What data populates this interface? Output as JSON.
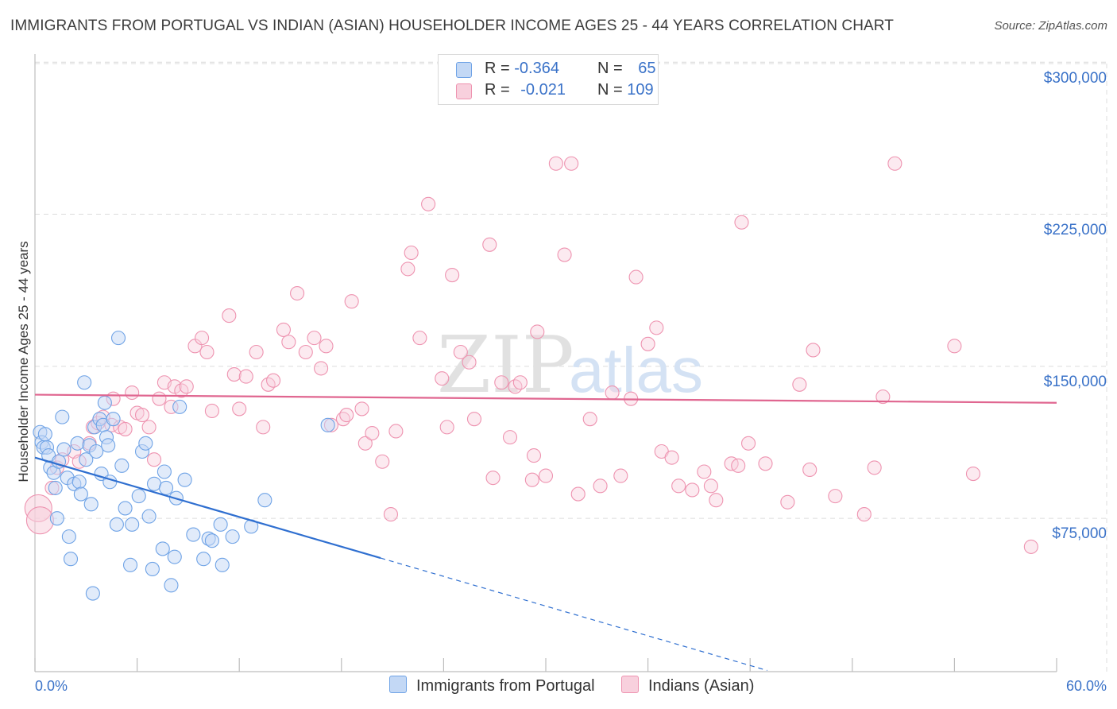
{
  "header": {
    "title": "IMMIGRANTS FROM PORTUGAL VS INDIAN (ASIAN) HOUSEHOLDER INCOME AGES 25 - 44 YEARS CORRELATION CHART",
    "source": "Source: ZipAtlas.com"
  },
  "legend": {
    "series1": {
      "r_label": "R = ",
      "r_value": "-0.364",
      "n_label": "N = ",
      "n_value": "65"
    },
    "series2": {
      "r_label": "R = ",
      "r_value": "-0.021",
      "n_label": "N = ",
      "n_value": "109"
    }
  },
  "watermark": {
    "zip": "ZIP",
    "atlas": "atlas"
  },
  "colors": {
    "blue": "#6fa3e6",
    "blue_fill": "#c3d8f5",
    "blue_line": "#2f6fd0",
    "pink": "#ee93b0",
    "pink_fill": "#f8d0dd",
    "pink_line": "#e06690",
    "axis_label": "#3a72c8"
  },
  "chart_data": {
    "type": "scatter",
    "title": "IMMIGRANTS FROM PORTUGAL VS INDIAN (ASIAN) HOUSEHOLDER INCOME AGES 25 - 44 YEARS CORRELATION CHART",
    "xlabel": "",
    "ylabel": "Householder Income Ages 25 - 44 years",
    "xlim": [
      0,
      60
    ],
    "ylim": [
      0,
      315000
    ],
    "x_tick_labels": [
      "0.0%",
      "60.0%"
    ],
    "y_ticks": [
      75000,
      150000,
      225000,
      300000
    ],
    "y_tick_labels": [
      "$75,000",
      "$150,000",
      "$225,000",
      "$300,000"
    ],
    "legend_position": "bottom-center",
    "series": [
      {
        "name": "Immigrants from Portugal",
        "color": "#6fa3e6",
        "trend": {
          "x_start": 0,
          "y_start": 105000,
          "x_solid_end": 20.3,
          "x_end": 43.0,
          "y_end": 0
        },
        "points": [
          [
            0.3,
            117500
          ],
          [
            0.4,
            112500
          ],
          [
            0.5,
            110000
          ],
          [
            0.6,
            116500
          ],
          [
            0.7,
            110000
          ],
          [
            0.8,
            106000
          ],
          [
            0.9,
            100000
          ],
          [
            1.1,
            97500
          ],
          [
            1.2,
            90000
          ],
          [
            1.3,
            75000
          ],
          [
            1.4,
            103000
          ],
          [
            1.6,
            125000
          ],
          [
            1.7,
            109000
          ],
          [
            1.9,
            95000
          ],
          [
            2.0,
            66000
          ],
          [
            2.1,
            55000
          ],
          [
            2.3,
            92000
          ],
          [
            2.5,
            112000
          ],
          [
            2.6,
            93000
          ],
          [
            2.7,
            87000
          ],
          [
            2.9,
            142000
          ],
          [
            3.0,
            104000
          ],
          [
            3.2,
            111000
          ],
          [
            3.3,
            82000
          ],
          [
            3.4,
            38000
          ],
          [
            3.5,
            120000
          ],
          [
            3.6,
            108000
          ],
          [
            3.8,
            124000
          ],
          [
            3.9,
            97000
          ],
          [
            4.0,
            121000
          ],
          [
            4.1,
            132000
          ],
          [
            4.2,
            115000
          ],
          [
            4.3,
            111000
          ],
          [
            4.4,
            93000
          ],
          [
            4.6,
            124000
          ],
          [
            4.8,
            72000
          ],
          [
            4.9,
            164000
          ],
          [
            5.1,
            101000
          ],
          [
            5.3,
            80000
          ],
          [
            5.6,
            52000
          ],
          [
            5.7,
            72000
          ],
          [
            6.1,
            86000
          ],
          [
            6.3,
            108000
          ],
          [
            6.5,
            112000
          ],
          [
            6.7,
            76000
          ],
          [
            6.9,
            50000
          ],
          [
            7.0,
            92000
          ],
          [
            7.5,
            60000
          ],
          [
            7.6,
            98000
          ],
          [
            7.7,
            90000
          ],
          [
            8.0,
            42000
          ],
          [
            8.2,
            56000
          ],
          [
            8.3,
            85000
          ],
          [
            8.5,
            130000
          ],
          [
            8.8,
            94000
          ],
          [
            9.3,
            67000
          ],
          [
            9.9,
            55000
          ],
          [
            10.2,
            65000
          ],
          [
            10.4,
            64000
          ],
          [
            11.0,
            52000
          ],
          [
            10.9,
            72000
          ],
          [
            11.6,
            66000
          ],
          [
            12.7,
            71000
          ],
          [
            13.5,
            84000
          ],
          [
            17.2,
            121000
          ]
        ]
      },
      {
        "name": "Indians (Asian)",
        "color": "#ee93b0",
        "trend": {
          "x_start": 0,
          "y_start": 136000,
          "x_end": 60,
          "y_end": 132000
        },
        "points": [
          [
            0.2,
            80000
          ],
          [
            0.3,
            74000
          ],
          [
            1.0,
            90000
          ],
          [
            1.3,
            100000
          ],
          [
            1.6,
            104000
          ],
          [
            2.3,
            108000
          ],
          [
            2.6,
            103000
          ],
          [
            3.2,
            112000
          ],
          [
            3.4,
            120000
          ],
          [
            3.7,
            122000
          ],
          [
            4.0,
            125000
          ],
          [
            4.5,
            121000
          ],
          [
            4.6,
            134000
          ],
          [
            5.0,
            120000
          ],
          [
            5.3,
            119000
          ],
          [
            5.7,
            137000
          ],
          [
            6.0,
            127000
          ],
          [
            6.3,
            126000
          ],
          [
            6.7,
            120000
          ],
          [
            7.0,
            104000
          ],
          [
            7.3,
            134000
          ],
          [
            7.6,
            142000
          ],
          [
            8.0,
            130000
          ],
          [
            8.2,
            140000
          ],
          [
            8.6,
            138000
          ],
          [
            8.9,
            140000
          ],
          [
            9.4,
            160000
          ],
          [
            9.8,
            164000
          ],
          [
            10.1,
            157000
          ],
          [
            10.4,
            128000
          ],
          [
            11.4,
            175000
          ],
          [
            11.7,
            146000
          ],
          [
            12.0,
            129000
          ],
          [
            12.4,
            145000
          ],
          [
            13.0,
            157000
          ],
          [
            13.4,
            120000
          ],
          [
            13.7,
            141000
          ],
          [
            14.0,
            143000
          ],
          [
            14.6,
            168000
          ],
          [
            14.9,
            162000
          ],
          [
            15.4,
            186000
          ],
          [
            15.9,
            157000
          ],
          [
            16.4,
            164000
          ],
          [
            16.8,
            149000
          ],
          [
            17.1,
            160000
          ],
          [
            17.4,
            121000
          ],
          [
            18.1,
            124000
          ],
          [
            18.3,
            126000
          ],
          [
            18.6,
            182000
          ],
          [
            19.2,
            129000
          ],
          [
            19.4,
            112000
          ],
          [
            19.8,
            117000
          ],
          [
            20.4,
            103000
          ],
          [
            20.9,
            77000
          ],
          [
            21.2,
            118000
          ],
          [
            21.9,
            198000
          ],
          [
            22.1,
            206000
          ],
          [
            22.6,
            164000
          ],
          [
            23.1,
            230000
          ],
          [
            23.9,
            144000
          ],
          [
            24.2,
            120000
          ],
          [
            24.5,
            195000
          ],
          [
            25.0,
            157000
          ],
          [
            25.5,
            152000
          ],
          [
            25.8,
            124000
          ],
          [
            26.7,
            210000
          ],
          [
            26.9,
            95000
          ],
          [
            27.4,
            142000
          ],
          [
            27.9,
            115000
          ],
          [
            28.2,
            140000
          ],
          [
            28.5,
            142000
          ],
          [
            29.2,
            94000
          ],
          [
            29.3,
            106000
          ],
          [
            29.5,
            167000
          ],
          [
            30.0,
            96000
          ],
          [
            30.6,
            250000
          ],
          [
            31.1,
            205000
          ],
          [
            31.5,
            250000
          ],
          [
            31.9,
            87000
          ],
          [
            32.6,
            124000
          ],
          [
            33.2,
            91000
          ],
          [
            33.9,
            137000
          ],
          [
            34.4,
            96000
          ],
          [
            35.0,
            134000
          ],
          [
            35.3,
            194000
          ],
          [
            36.0,
            161000
          ],
          [
            36.5,
            169000
          ],
          [
            36.8,
            108000
          ],
          [
            37.4,
            105000
          ],
          [
            37.8,
            91000
          ],
          [
            38.6,
            89000
          ],
          [
            39.3,
            98000
          ],
          [
            39.7,
            91000
          ],
          [
            40.0,
            84000
          ],
          [
            40.9,
            102000
          ],
          [
            41.5,
            221000
          ],
          [
            41.9,
            112000
          ],
          [
            41.3,
            101000
          ],
          [
            42.9,
            102000
          ],
          [
            44.2,
            83000
          ],
          [
            44.9,
            141000
          ],
          [
            45.5,
            99000
          ],
          [
            45.7,
            158000
          ],
          [
            47.0,
            86000
          ],
          [
            48.7,
            77000
          ],
          [
            49.3,
            100000
          ],
          [
            49.8,
            135000
          ],
          [
            50.5,
            250000
          ],
          [
            54.0,
            160000
          ],
          [
            55.1,
            97000
          ],
          [
            58.5,
            61000
          ]
        ]
      }
    ]
  },
  "bottom_legend": {
    "series1_label": "Immigrants from Portugal",
    "series2_label": "Indians (Asian)"
  }
}
